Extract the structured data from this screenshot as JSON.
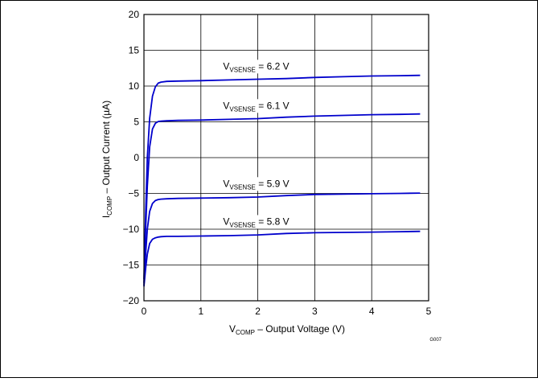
{
  "chart_data": {
    "type": "line",
    "title": "",
    "xlabel": {
      "prefix": "V",
      "sub": "COMP",
      "suffix": " – Output Voltage (V)"
    },
    "ylabel": {
      "prefix": "I",
      "sub": "COMP",
      "suffix": " – Output Current (µA)"
    },
    "xlim": [
      0,
      5
    ],
    "ylim": [
      -20,
      20
    ],
    "x_ticks": [
      "0",
      "1",
      "2",
      "3",
      "4",
      "5"
    ],
    "y_ticks": [
      "20",
      "15",
      "10",
      "5",
      "0",
      "−5",
      "−10",
      "−15",
      "−20"
    ],
    "grid": true,
    "figure_id": "G007",
    "series": [
      {
        "name": "VVSENSE = 6.2 V",
        "label": {
          "prefix": "V",
          "sub": "VSENSE",
          "suffix": " = 6.2 V"
        },
        "x": [
          0,
          0.03,
          0.06,
          0.1,
          0.15,
          0.2,
          0.25,
          0.3,
          0.4,
          0.6,
          1,
          1.5,
          2,
          2.5,
          3,
          3.5,
          4,
          4.5,
          4.85
        ],
        "y": [
          -17,
          -8,
          0,
          5.5,
          8.6,
          9.9,
          10.4,
          10.55,
          10.65,
          10.7,
          10.75,
          10.85,
          10.95,
          11.05,
          11.2,
          11.3,
          11.4,
          11.45,
          11.5
        ]
      },
      {
        "name": "VVSENSE = 6.1 V",
        "label": {
          "prefix": "V",
          "sub": "VSENSE",
          "suffix": " = 6.1 V"
        },
        "x": [
          0,
          0.03,
          0.06,
          0.1,
          0.15,
          0.2,
          0.25,
          0.3,
          0.4,
          0.6,
          1,
          1.5,
          2,
          2.5,
          3,
          3.5,
          4,
          4.5,
          4.85
        ],
        "y": [
          -17.5,
          -10,
          -4,
          1.5,
          4,
          4.8,
          5.05,
          5.1,
          5.15,
          5.2,
          5.25,
          5.35,
          5.45,
          5.65,
          5.8,
          5.9,
          6.0,
          6.05,
          6.1
        ]
      },
      {
        "name": "VVSENSE = 5.9 V",
        "label": {
          "prefix": "V",
          "sub": "VSENSE",
          "suffix": " = 5.9 V"
        },
        "x": [
          0,
          0.03,
          0.06,
          0.1,
          0.15,
          0.2,
          0.25,
          0.3,
          0.4,
          0.6,
          1,
          1.5,
          2,
          2.5,
          3,
          3.5,
          4,
          4.5,
          4.85
        ],
        "y": [
          -17.8,
          -13.5,
          -10,
          -7.5,
          -6.4,
          -6.0,
          -5.85,
          -5.8,
          -5.75,
          -5.7,
          -5.65,
          -5.6,
          -5.5,
          -5.3,
          -5.15,
          -5.1,
          -5.05,
          -5.0,
          -4.95
        ]
      },
      {
        "name": "VVSENSE = 5.8 V",
        "label": {
          "prefix": "V",
          "sub": "VSENSE",
          "suffix": " = 5.8 V"
        },
        "x": [
          0,
          0.03,
          0.06,
          0.1,
          0.15,
          0.2,
          0.25,
          0.3,
          0.4,
          0.6,
          1,
          1.5,
          2,
          2.5,
          3,
          3.5,
          4,
          4.5,
          4.85
        ],
        "y": [
          -18,
          -15.5,
          -13.5,
          -12,
          -11.4,
          -11.2,
          -11.1,
          -11.05,
          -11.0,
          -11.0,
          -10.95,
          -10.9,
          -10.8,
          -10.6,
          -10.5,
          -10.45,
          -10.4,
          -10.35,
          -10.3
        ]
      }
    ],
    "line_color": "#0000cc"
  }
}
